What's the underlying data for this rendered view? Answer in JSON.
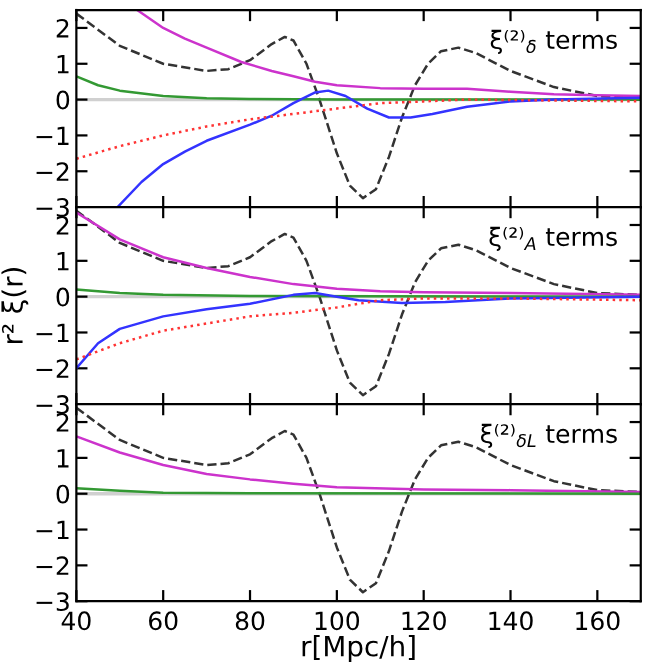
{
  "chart_data": [
    {
      "type": "line",
      "annotations": [
        "ξ⁽²⁾$_{δ}$ terms"
      ],
      "xlim": [
        40,
        170
      ],
      "ylim": [
        -3,
        2.5
      ],
      "yticks": [
        -3,
        -2,
        -1,
        0,
        1,
        2
      ],
      "tick_labels": "y",
      "grid": false,
      "legend": false,
      "ref_lines": [
        {
          "axis": "y",
          "value": 0,
          "color": "#d0d0d0"
        }
      ],
      "series": [
        {
          "color": "#333333",
          "line_style": "dashed",
          "x": [
            40,
            50,
            60,
            70,
            75,
            80,
            85,
            88,
            90,
            93,
            96,
            100,
            103,
            106,
            109,
            112,
            115,
            118,
            121,
            124,
            128,
            132,
            140,
            150,
            160,
            170
          ],
          "values": [
            2.4,
            1.5,
            1.0,
            0.8,
            0.85,
            1.1,
            1.55,
            1.75,
            1.65,
            1.0,
            0.0,
            -1.5,
            -2.4,
            -2.75,
            -2.5,
            -1.6,
            -0.5,
            0.4,
            1.0,
            1.35,
            1.45,
            1.3,
            0.8,
            0.35,
            0.1,
            0.05
          ]
        },
        {
          "color": "#cc33cc",
          "line_style": "solid",
          "x": [
            54,
            60,
            65,
            70,
            78,
            85,
            90,
            95,
            100,
            110,
            120,
            130,
            140,
            150,
            160,
            170
          ],
          "values": [
            2.5,
            2.0,
            1.7,
            1.45,
            1.05,
            0.8,
            0.65,
            0.5,
            0.4,
            0.32,
            0.3,
            0.3,
            0.22,
            0.15,
            0.12,
            0.1
          ]
        },
        {
          "color": "#339933",
          "line_style": "solid",
          "x": [
            40,
            45,
            50,
            60,
            70,
            80,
            100,
            170
          ],
          "values": [
            0.65,
            0.4,
            0.25,
            0.1,
            0.04,
            0.02,
            0.0,
            0.0
          ]
        },
        {
          "color": "#3333ff",
          "line_style": "solid",
          "x": [
            49.5,
            55,
            60,
            65,
            70,
            80,
            85,
            90,
            95,
            98,
            102,
            107,
            112,
            117,
            122,
            130,
            140,
            150,
            170
          ],
          "values": [
            -3.0,
            -2.3,
            -1.8,
            -1.45,
            -1.15,
            -0.7,
            -0.45,
            -0.1,
            0.2,
            0.25,
            0.1,
            -0.25,
            -0.5,
            -0.5,
            -0.4,
            -0.2,
            -0.05,
            0.0,
            0.05
          ]
        },
        {
          "color": "#ff3333",
          "line_style": "dotted",
          "x": [
            40,
            50,
            60,
            70,
            80,
            90,
            100,
            110,
            120,
            130,
            170
          ],
          "values": [
            -1.65,
            -1.3,
            -1.0,
            -0.75,
            -0.55,
            -0.4,
            -0.25,
            -0.1,
            -0.05,
            0.0,
            -0.05
          ]
        }
      ]
    },
    {
      "type": "line",
      "annotations": [
        "ξ⁽²⁾$_{A}$ terms"
      ],
      "ylabel": "r² ξ(r)",
      "xlim": [
        40,
        170
      ],
      "ylim": [
        -3,
        2.5
      ],
      "yticks": [
        -3,
        -2,
        -1,
        0,
        1,
        2
      ],
      "tick_labels": "y",
      "grid": false,
      "legend": false,
      "ref_lines": [
        {
          "axis": "y",
          "value": 0,
          "color": "#d0d0d0"
        }
      ],
      "series": [
        {
          "color": "#333333",
          "line_style": "dashed",
          "x": [
            40,
            50,
            60,
            70,
            75,
            80,
            85,
            88,
            90,
            93,
            96,
            100,
            103,
            106,
            109,
            112,
            115,
            118,
            121,
            124,
            128,
            132,
            140,
            150,
            160,
            170
          ],
          "values": [
            2.4,
            1.5,
            1.0,
            0.8,
            0.85,
            1.1,
            1.55,
            1.75,
            1.65,
            1.0,
            0.0,
            -1.5,
            -2.4,
            -2.75,
            -2.5,
            -1.6,
            -0.5,
            0.4,
            1.0,
            1.35,
            1.45,
            1.3,
            0.8,
            0.35,
            0.1,
            0.05
          ]
        },
        {
          "color": "#cc33cc",
          "line_style": "solid",
          "x": [
            40,
            50,
            60,
            70,
            80,
            90,
            100,
            110,
            120,
            140,
            170
          ],
          "values": [
            2.35,
            1.6,
            1.1,
            0.8,
            0.55,
            0.35,
            0.22,
            0.15,
            0.12,
            0.1,
            0.05
          ]
        },
        {
          "color": "#339933",
          "line_style": "solid",
          "x": [
            40,
            50,
            60,
            80,
            170
          ],
          "values": [
            0.2,
            0.1,
            0.05,
            0.02,
            0.0
          ]
        },
        {
          "color": "#3333ff",
          "line_style": "solid",
          "x": [
            40,
            45,
            50,
            60,
            70,
            80,
            90,
            95,
            100,
            105,
            115,
            125,
            140,
            170
          ],
          "values": [
            -2.0,
            -1.3,
            -0.9,
            -0.55,
            -0.35,
            -0.2,
            0.05,
            0.1,
            0.0,
            -0.1,
            -0.18,
            -0.15,
            -0.05,
            0.0
          ]
        },
        {
          "color": "#ff3333",
          "line_style": "dotted",
          "x": [
            40,
            50,
            60,
            70,
            80,
            90,
            100,
            110,
            120,
            140,
            170
          ],
          "values": [
            -1.75,
            -1.3,
            -0.95,
            -0.75,
            -0.55,
            -0.45,
            -0.3,
            -0.1,
            -0.05,
            -0.05,
            -0.1
          ]
        }
      ]
    },
    {
      "type": "line",
      "annotations": [
        "ξ⁽²⁾$_{δL}$ terms"
      ],
      "xlabel": "r[Mpc/h]",
      "xlim": [
        40,
        170
      ],
      "xticks": [
        40,
        60,
        80,
        100,
        120,
        140,
        160
      ],
      "ylim": [
        -3,
        2.5
      ],
      "yticks": [
        -3,
        -2,
        -1,
        0,
        1,
        2
      ],
      "grid": false,
      "legend": false,
      "ref_lines": [
        {
          "axis": "y",
          "value": 0,
          "color": "#d0d0d0"
        }
      ],
      "series": [
        {
          "color": "#333333",
          "line_style": "dashed",
          "x": [
            40,
            50,
            60,
            70,
            75,
            80,
            85,
            88,
            90,
            93,
            96,
            100,
            103,
            106,
            109,
            112,
            115,
            118,
            121,
            124,
            128,
            132,
            140,
            150,
            160,
            170
          ],
          "values": [
            2.4,
            1.5,
            1.0,
            0.8,
            0.85,
            1.1,
            1.55,
            1.75,
            1.65,
            1.0,
            0.0,
            -1.5,
            -2.4,
            -2.75,
            -2.5,
            -1.6,
            -0.5,
            0.4,
            1.0,
            1.35,
            1.45,
            1.3,
            0.8,
            0.35,
            0.1,
            0.05
          ]
        },
        {
          "color": "#cc33cc",
          "line_style": "solid",
          "x": [
            40,
            50,
            60,
            70,
            80,
            90,
            100,
            120,
            140,
            170
          ],
          "values": [
            1.6,
            1.15,
            0.8,
            0.55,
            0.4,
            0.28,
            0.18,
            0.12,
            0.1,
            0.05
          ]
        },
        {
          "color": "#339933",
          "line_style": "solid",
          "x": [
            40,
            50,
            60,
            80,
            170
          ],
          "values": [
            0.15,
            0.08,
            0.03,
            0.01,
            0.0
          ]
        }
      ]
    }
  ]
}
